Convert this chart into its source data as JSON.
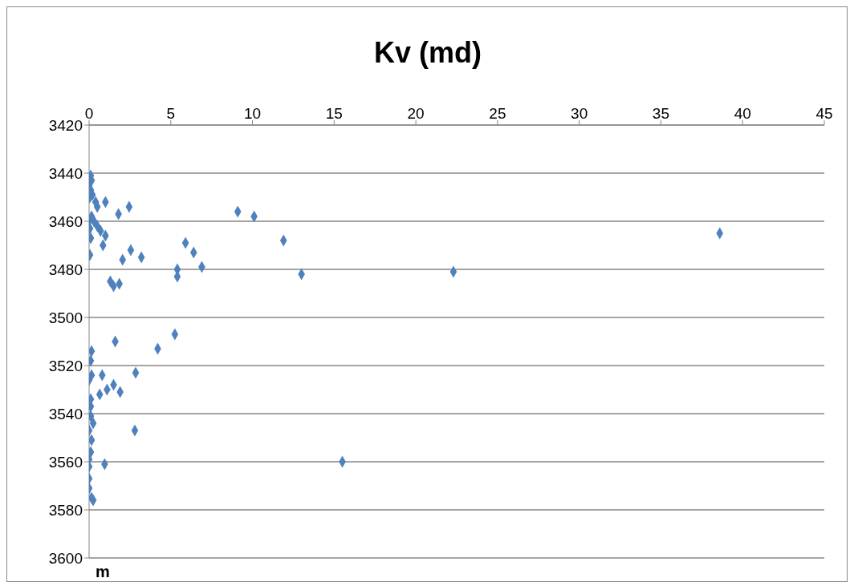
{
  "chart_data": {
    "type": "scatter",
    "title": "Kv (md)",
    "annotations": [
      "m"
    ],
    "series": [
      {
        "color": "#4f81bd",
        "x": [
          0.1,
          0.15,
          0,
          0.1,
          0.2,
          0.05,
          0.4,
          1.0,
          2.45,
          0.5,
          1.8,
          0.15,
          0,
          0.3,
          0.5,
          0.7,
          0.05,
          1.0,
          0.1,
          0.85,
          0.05,
          9.1,
          10.1,
          11.9,
          38.6,
          5.9,
          6.4,
          2.55,
          3.2,
          2.05,
          5.4,
          5.4,
          6.9,
          13.0,
          22.3,
          1.3,
          1.5,
          1.85,
          5.25,
          4.2,
          1.6,
          0.15,
          0.1,
          2.85,
          0.8,
          0.15,
          0,
          1.5,
          1.9,
          1.1,
          0.65,
          0.1,
          0.1,
          0.1,
          0.25,
          0,
          2.8,
          0.15,
          0.1,
          0,
          15.5,
          0.95,
          0,
          0,
          0,
          0.15,
          0.25
        ],
        "values": [
          3441,
          3443,
          3445,
          3447,
          3449,
          3450,
          3452,
          3452,
          3454,
          3454,
          3457,
          3458,
          3460,
          3460,
          3462,
          3464,
          3463,
          3466,
          3467,
          3470,
          3474,
          3456,
          3458,
          3468,
          3465,
          3469,
          3473,
          3472,
          3475,
          3476,
          3480,
          3483,
          3479,
          3482,
          3481,
          3485,
          3487,
          3486,
          3507,
          3513,
          3510,
          3514,
          3518,
          3523,
          3524,
          3524,
          3526,
          3528,
          3531,
          3530,
          3532,
          3534,
          3537,
          3541,
          3544,
          3547,
          3547,
          3551,
          3556,
          3559,
          3560,
          3561,
          3562,
          3567,
          3571,
          3575,
          3576
        ]
      }
    ],
    "xlim": [
      0,
      45
    ],
    "xticks": [
      0,
      5,
      10,
      15,
      20,
      25,
      30,
      35,
      40,
      45
    ],
    "ylim": [
      3600,
      3420
    ],
    "yticks": [
      3420,
      3440,
      3460,
      3480,
      3500,
      3520,
      3540,
      3560,
      3580,
      3600
    ],
    "grid": "y",
    "marker": "diamond"
  }
}
